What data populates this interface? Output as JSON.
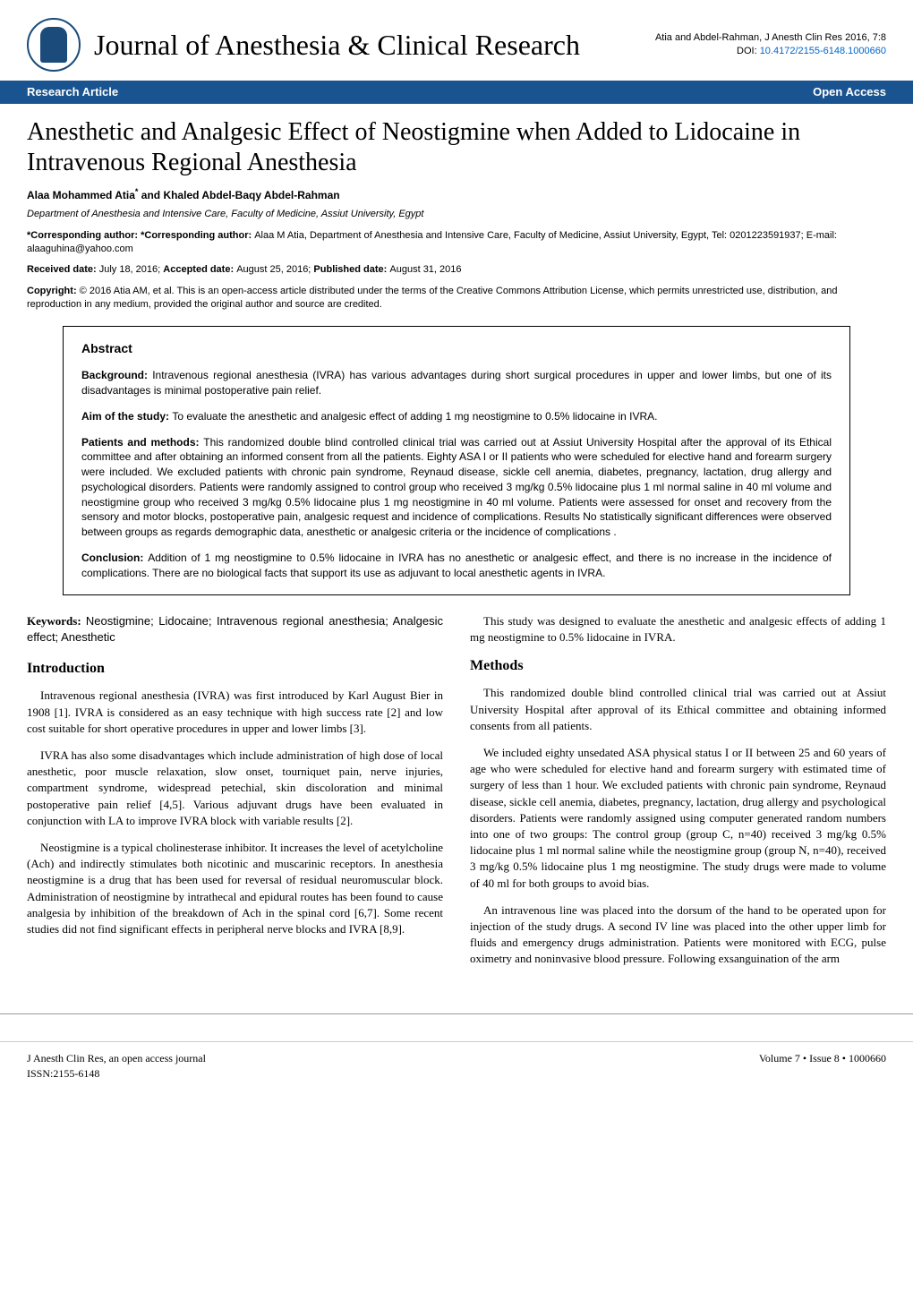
{
  "header": {
    "journal_name": "Journal of Anesthesia & Clinical Research",
    "citation": "Atia and Abdel-Rahman, J Anesth Clin Res 2016, 7:8",
    "doi_label": "DOI: ",
    "doi": "10.4172/2155-6148.1000660",
    "logo_color": "#1a4b7a"
  },
  "bar": {
    "left": "Research Article",
    "right": "Open Access",
    "bg_color": "#1a5490",
    "text_color": "#ffffff"
  },
  "title": "Anesthetic and Analgesic Effect of Neostigmine when Added to Lidocaine in Intravenous Regional Anesthesia",
  "authors": "Alaa Mohammed Atia",
  "authors_sup": "*",
  "authors_rest": " and Khaled Abdel-Baqy Abdel-Rahman",
  "affiliation": "Department of Anesthesia and Intensive Care, Faculty of Medicine, Assiut University, Egypt",
  "corresponding_label": "*Corresponding author: ",
  "corresponding": "Alaa M Atia, Department of Anesthesia and Intensive Care, Faculty of Medicine, Assiut University, Egypt, Tel: 0201223591937; E-mail: alaaguhina@yahoo.com",
  "dates_received_label": "Received date: ",
  "dates_received": "July 18, 2016; ",
  "dates_accepted_label": "Accepted date: ",
  "dates_accepted": "August 25, 2016; ",
  "dates_published_label": "Published date: ",
  "dates_published": "August 31, 2016",
  "copyright_label": "Copyright: ",
  "copyright": "© 2016 Atia AM, et al. This is an open-access article distributed under the terms of the Creative Commons Attribution License, which permits unrestricted use, distribution, and reproduction in any medium, provided the original author and source are credited.",
  "abstract": {
    "heading": "Abstract",
    "background_label": "Background: ",
    "background": "Intravenous regional anesthesia (IVRA) has various advantages during short surgical procedures in upper and lower limbs, but one of its disadvantages is minimal postoperative pain relief.",
    "aim_label": "Aim of the study: ",
    "aim": "To evaluate the anesthetic and analgesic effect of adding 1 mg neostigmine to 0.5% lidocaine in IVRA.",
    "methods_label": "Patients and methods: ",
    "methods": "This randomized double blind controlled clinical trial was carried out at Assiut University Hospital after the approval of its Ethical committee and after obtaining an informed consent from all the patients. Eighty ASA I or II patients who were scheduled for elective hand and forearm surgery were included. We excluded patients with chronic pain syndrome, Reynaud disease, sickle cell anemia, diabetes, pregnancy, lactation, drug allergy and psychological disorders. Patients were randomly assigned to control group who received 3 mg/kg 0.5% lidocaine plus 1 ml normal saline in 40 ml volume and neostigmine group who received 3 mg/kg 0.5% lidocaine plus 1 mg neostigmine in 40 ml volume. Patients were assessed for onset and recovery from the sensory and motor blocks, postoperative pain, analgesic request and incidence of complications. Results No statistically significant differences were observed between groups as regards demographic data, anesthetic or analgesic criteria or the incidence of complications .",
    "conclusion_label": "Conclusion: ",
    "conclusion": "Addition of 1 mg neostigmine to 0.5% lidocaine in IVRA has no anesthetic or analgesic effect, and there is no increase in the incidence of complications. There are no biological facts that support its use as adjuvant to local anesthetic agents in IVRA."
  },
  "keywords_label": "Keywords: ",
  "keywords": "Neostigmine; Lidocaine; Intravenous regional anesthesia; Analgesic effect; Anesthetic",
  "introduction": {
    "heading": "Introduction",
    "p1": "Intravenous regional anesthesia (IVRA) was first introduced by Karl August Bier in 1908 [1]. IVRA is considered as an easy technique with high success rate [2] and low cost suitable for short operative procedures in upper and lower limbs [3].",
    "p2": "IVRA has also some disadvantages which include administration of high dose of local anesthetic, poor muscle relaxation, slow onset, tourniquet pain, nerve injuries, compartment syndrome, widespread petechial, skin discoloration and minimal postoperative pain relief [4,5]. Various adjuvant drugs have been evaluated in conjunction with LA to improve IVRA block with variable results [2].",
    "p3": "Neostigmine is a typical cholinesterase inhibitor. It increases the level of acetylcholine (Ach) and indirectly stimulates both nicotinic and muscarinic receptors. In anesthesia neostigmine is a drug that has been used for reversal of residual neuromuscular block. Administration of neostigmine by intrathecal and epidural routes has been found to cause analgesia by inhibition of the breakdown of Ach in the spinal cord [6,7]. Some recent studies did not find significant effects in peripheral nerve blocks and IVRA [8,9]."
  },
  "right_intro": "This study was designed to evaluate the anesthetic and analgesic effects of adding 1 mg neostigmine to 0.5% lidocaine in IVRA.",
  "methods": {
    "heading": "Methods",
    "p1": "This randomized double blind controlled clinical trial was carried out at Assiut University Hospital after approval of its Ethical committee and obtaining informed consents from all patients.",
    "p2": "We included eighty unsedated ASA physical status I or II between 25 and 60 years of age who were scheduled for elective hand and forearm surgery with estimated time of surgery of less than 1 hour. We excluded patients with chronic pain syndrome, Reynaud disease, sickle cell anemia, diabetes, pregnancy, lactation, drug allergy and psychological disorders. Patients were randomly assigned using computer generated random numbers into one of two groups: The control group (group C, n=40) received 3 mg/kg 0.5% lidocaine plus 1 ml normal saline while the neostigmine group (group N, n=40), received 3 mg/kg 0.5% lidocaine plus 1 mg neostigmine. The study drugs were made to volume of 40 ml for both groups to avoid bias.",
    "p3": "An intravenous line was placed into the dorsum of the hand to be operated upon for injection of the study drugs. A second IV line was placed into the other upper limb for fluids and emergency drugs administration. Patients were monitored with ECG, pulse oximetry and noninvasive blood pressure. Following exsanguination of the arm"
  },
  "footer": {
    "left_line1": "J Anesth Clin Res, an open access journal",
    "left_line2": "ISSN:2155-6148",
    "right": "Volume 7 • Issue 8 • 1000660"
  },
  "colors": {
    "link": "#0066cc",
    "text": "#000000",
    "bg": "#ffffff"
  }
}
